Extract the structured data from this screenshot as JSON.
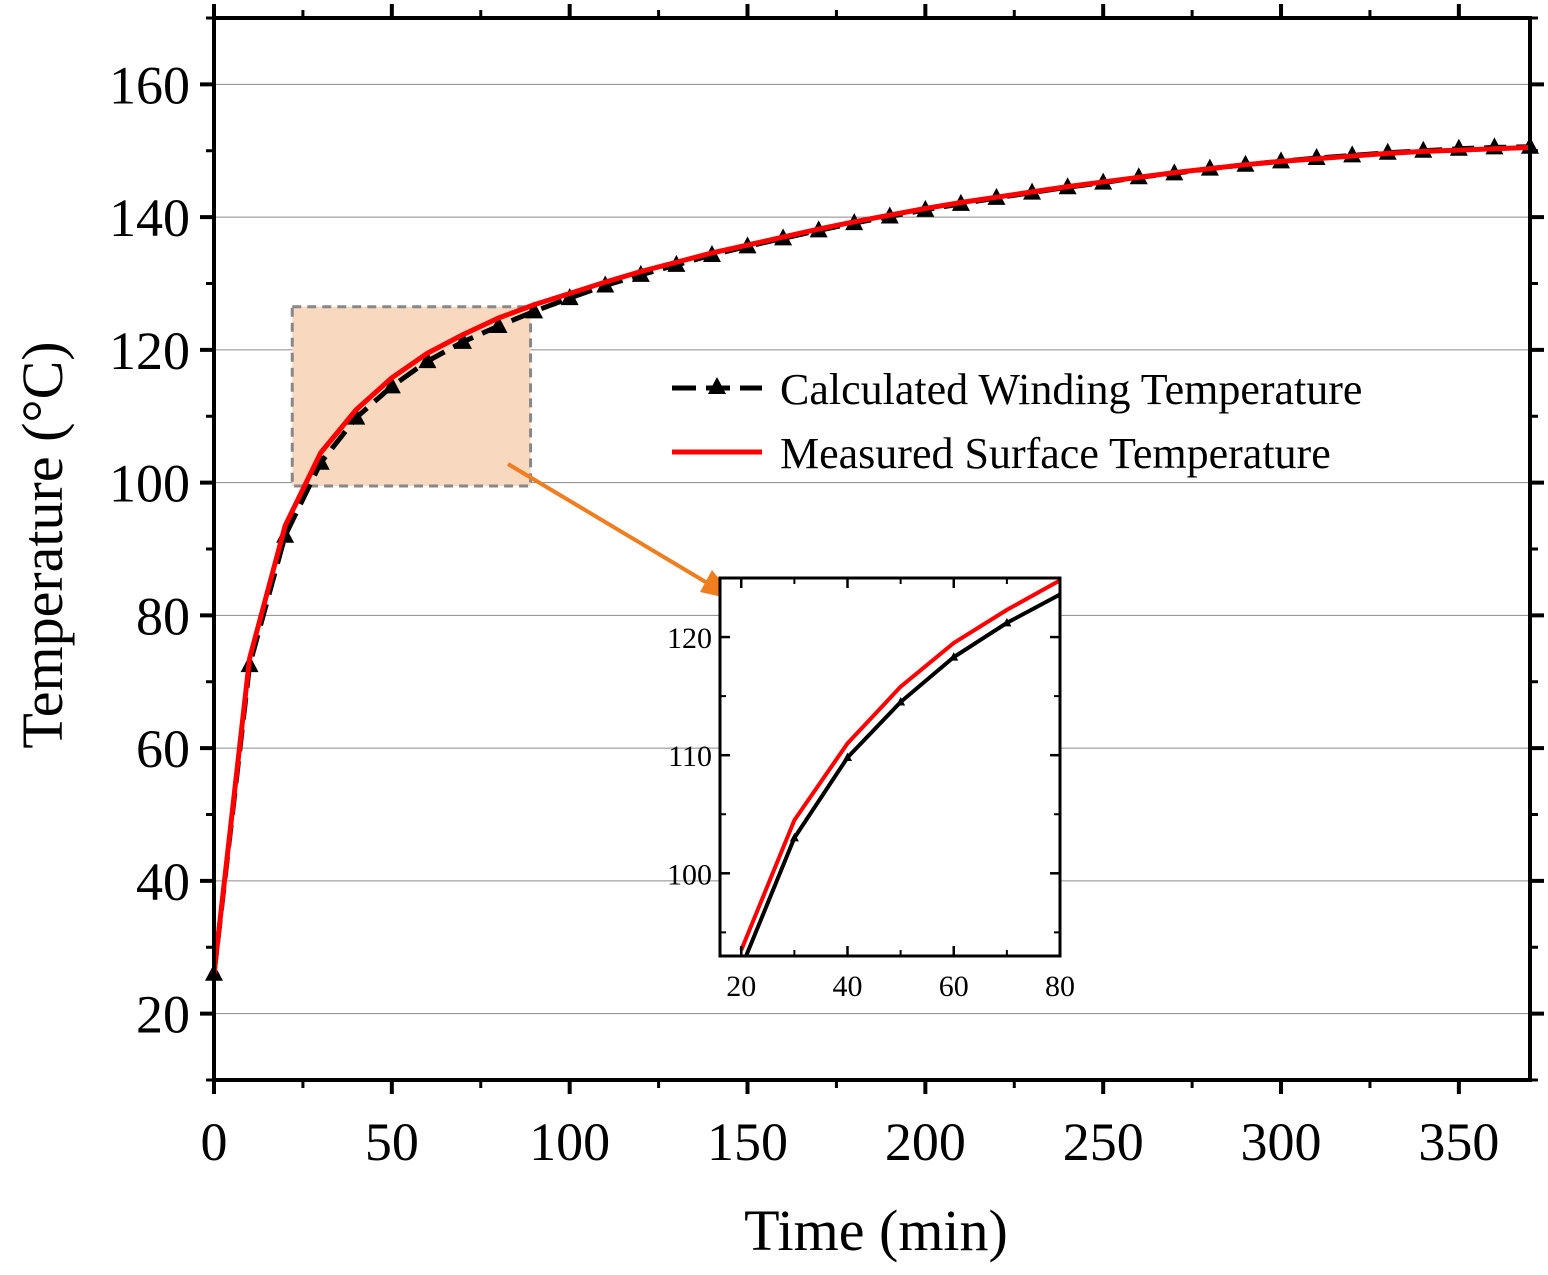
{
  "chart_data": [
    {
      "type": "line",
      "role": "main",
      "xlabel": "Time (min)",
      "ylabel": "Temperature (°C)",
      "xlim": [
        0,
        370
      ],
      "ylim": [
        10,
        170
      ],
      "xticks": [
        0,
        50,
        100,
        150,
        200,
        250,
        300,
        350
      ],
      "yticks": [
        20,
        40,
        60,
        80,
        100,
        120,
        140,
        160
      ],
      "grid": "horizontal",
      "legend_position": "center-right",
      "x": [
        0,
        10,
        20,
        30,
        40,
        50,
        60,
        70,
        80,
        90,
        100,
        110,
        120,
        130,
        140,
        150,
        160,
        170,
        180,
        190,
        200,
        210,
        220,
        230,
        240,
        250,
        260,
        270,
        280,
        290,
        300,
        310,
        320,
        330,
        340,
        350,
        360,
        370
      ],
      "series": [
        {
          "name": "Calculated Winding Temperature",
          "color": "#000000",
          "style": "dash-triangle",
          "values": [
            26,
            72.5,
            92,
            103,
            109.8,
            114.5,
            118.3,
            121.2,
            123.6,
            125.8,
            127.8,
            129.7,
            131.3,
            132.8,
            134.3,
            135.6,
            136.8,
            138,
            139.1,
            140.1,
            141.1,
            142,
            142.9,
            143.7,
            144.5,
            145.2,
            146,
            146.6,
            147.3,
            147.9,
            148.4,
            148.9,
            149.3,
            149.7,
            150,
            150.3,
            150.5,
            150.6
          ]
        },
        {
          "name": "Measured Surface Temperature",
          "color": "#ff0000",
          "style": "solid",
          "values": [
            26,
            73.5,
            93.5,
            104.5,
            111,
            115.8,
            119.5,
            122.3,
            124.8,
            126.8,
            128.5,
            130.2,
            131.8,
            133.2,
            134.6,
            135.8,
            137,
            138.2,
            139.3,
            140.3,
            141.3,
            142.2,
            143,
            143.8,
            144.6,
            145.3,
            146,
            146.7,
            147.3,
            147.9,
            148.4,
            148.8,
            149.2,
            149.6,
            149.9,
            150.1,
            150.3,
            150.5
          ]
        }
      ]
    },
    {
      "type": "line",
      "role": "inset",
      "xlim": [
        16,
        80
      ],
      "ylim": [
        93,
        125
      ],
      "xticks": [
        20,
        40,
        60,
        80
      ],
      "yticks": [
        100,
        110,
        120
      ],
      "x": [
        20,
        30,
        40,
        50,
        60,
        70,
        80
      ],
      "series": [
        {
          "name": "Calculated Winding Temperature",
          "color": "#000000",
          "values": [
            92,
            103,
            109.8,
            114.5,
            118.3,
            121.2,
            123.6
          ]
        },
        {
          "name": "Measured Surface Temperature",
          "color": "#ff0000",
          "values": [
            93.5,
            104.5,
            111,
            115.8,
            119.5,
            122.3,
            124.8
          ]
        }
      ]
    }
  ],
  "zoom_region": {
    "x_range": [
      22,
      89
    ],
    "y_range": [
      99.5,
      126.5
    ],
    "fill": "#f8d9bf",
    "arrow_color": "#f07d1f"
  }
}
